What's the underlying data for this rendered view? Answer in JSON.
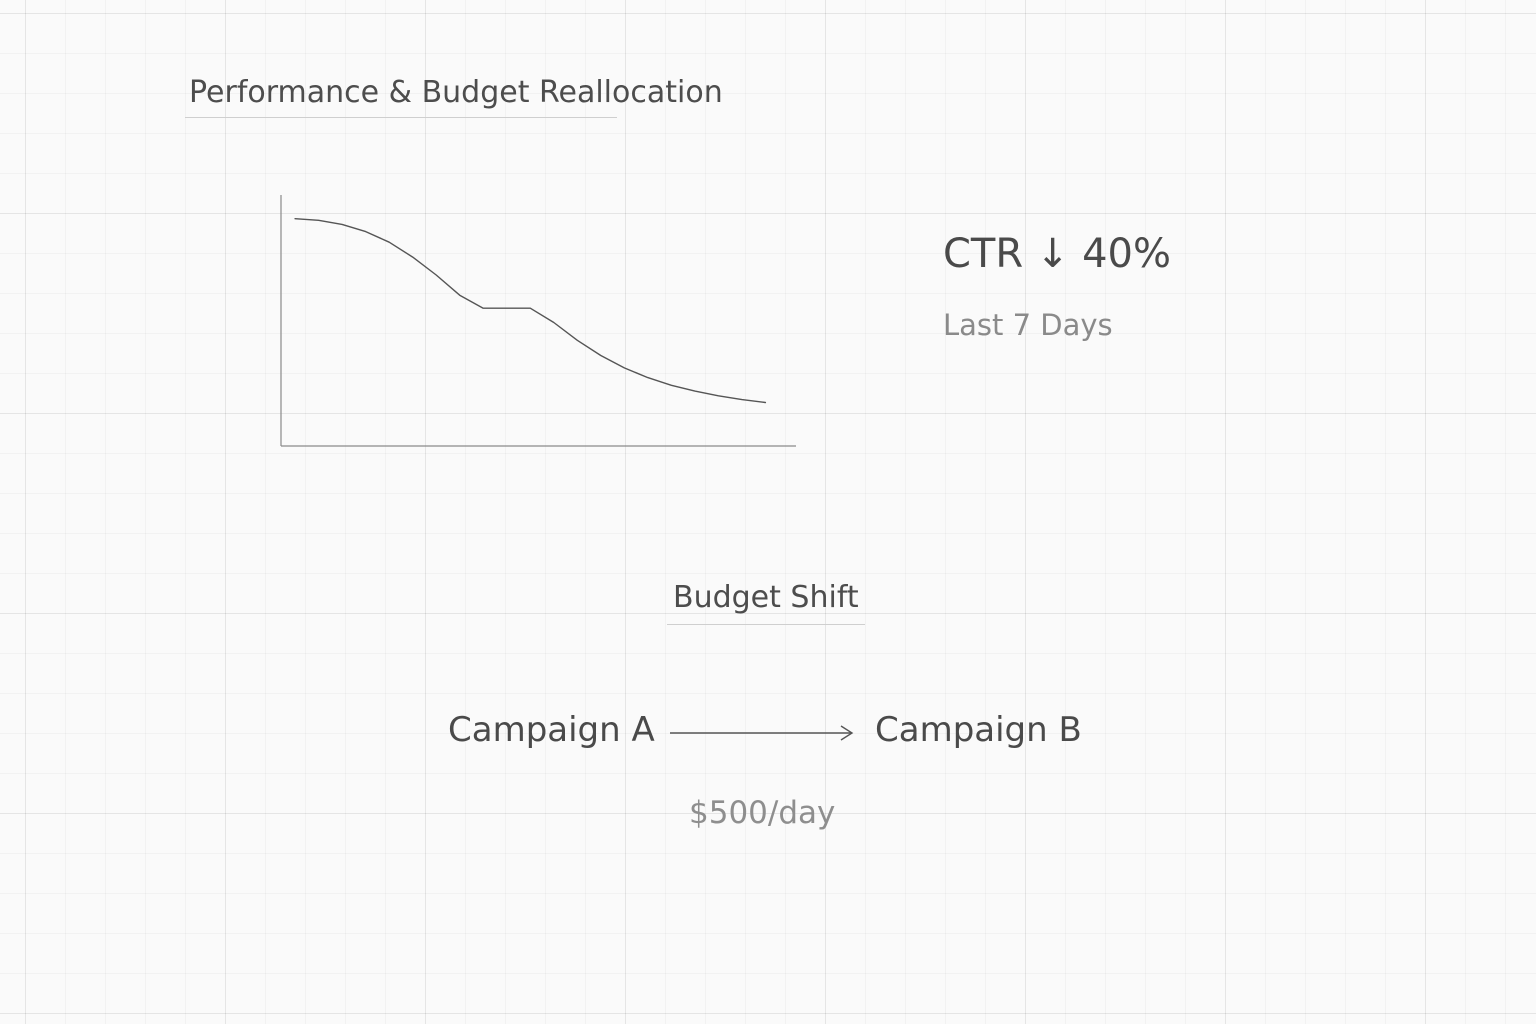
{
  "title": "Performance & Budget Reallocation",
  "kpi": {
    "value": "CTR ↓ 40%",
    "period": "Last 7 Days"
  },
  "budget_shift": {
    "title": "Budget Shift",
    "from": "Campaign A",
    "to": "Campaign B",
    "amount": "$500/day",
    "arrow_icon": "arrow-right-icon"
  },
  "colors": {
    "background": "#fafafa",
    "text_primary": "#4a4a4a",
    "text_secondary": "#8a8a8a",
    "line": "#555555"
  },
  "chart_data": {
    "type": "line",
    "x": [
      0,
      1,
      2,
      3,
      4,
      5,
      6,
      7,
      8,
      9,
      10,
      11,
      12,
      13,
      14,
      15,
      16,
      17,
      18,
      19,
      20
    ],
    "series": [
      {
        "values": [
          100,
          99.2,
          97.1,
          93.5,
          88.1,
          80.6,
          71.5,
          61.3,
          54.7,
          54.7,
          54.7,
          47.5,
          38.5,
          30.8,
          24.5,
          19.6,
          15.7,
          12.8,
          10.4,
          8.5,
          7
        ]
      }
    ],
    "xlim": [
      -0.6,
      21.3
    ],
    "ylim": [
      -15,
      112
    ],
    "xlabel": "",
    "ylabel": "",
    "grid": false,
    "legend": "none"
  }
}
